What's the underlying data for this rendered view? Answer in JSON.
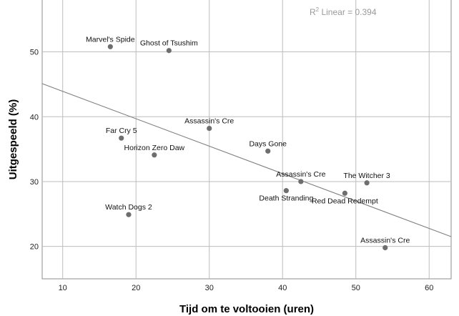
{
  "chart_data": {
    "type": "scatter",
    "xlabel": "Tijd om te voltooien (uren)",
    "ylabel": "Uitgespeeld (%)",
    "xlim": [
      7.2,
      63
    ],
    "ylim": [
      15,
      58
    ],
    "x_ticks": [
      10,
      20,
      30,
      40,
      50,
      60
    ],
    "y_ticks": [
      20,
      30,
      40,
      50
    ],
    "grid": true,
    "annotation": {
      "prefix": "R",
      "sup": "2",
      "text": " Linear = 0.394"
    },
    "fit_line": {
      "x1": 7.2,
      "y1": 45.1,
      "x2": 63,
      "y2": 21.5
    },
    "point_color": "#6e6e6e",
    "line_color": "#808080",
    "grid_color": "#bdbdbd",
    "points": [
      {
        "label": "Marvel's Spide",
        "x": 16.5,
        "y": 50.8,
        "label_pos": "above"
      },
      {
        "label": "Ghost of Tsushim",
        "x": 24.5,
        "y": 50.2,
        "label_pos": "above"
      },
      {
        "label": "Far Cry 5",
        "x": 18.0,
        "y": 36.7,
        "label_pos": "above"
      },
      {
        "label": "Horizon Zero Daw",
        "x": 22.5,
        "y": 34.1,
        "label_pos": "above"
      },
      {
        "label": "Assassin's Cre",
        "x": 30.0,
        "y": 38.2,
        "label_pos": "above"
      },
      {
        "label": "Days Gone",
        "x": 38.0,
        "y": 34.7,
        "label_pos": "above"
      },
      {
        "label": "Assassin's Cre",
        "x": 42.5,
        "y": 30.0,
        "label_pos": "above"
      },
      {
        "label": "Death Stranding",
        "x": 40.5,
        "y": 28.6,
        "label_pos": "below"
      },
      {
        "label": "The Witcher 3",
        "x": 51.5,
        "y": 29.8,
        "label_pos": "above"
      },
      {
        "label": "Red Dead Redempt",
        "x": 48.5,
        "y": 28.2,
        "label_pos": "below"
      },
      {
        "label": "Watch Dogs 2",
        "x": 19.0,
        "y": 24.9,
        "label_pos": "above"
      },
      {
        "label": "Assassin's Cre",
        "x": 54.0,
        "y": 19.8,
        "label_pos": "above"
      }
    ]
  }
}
